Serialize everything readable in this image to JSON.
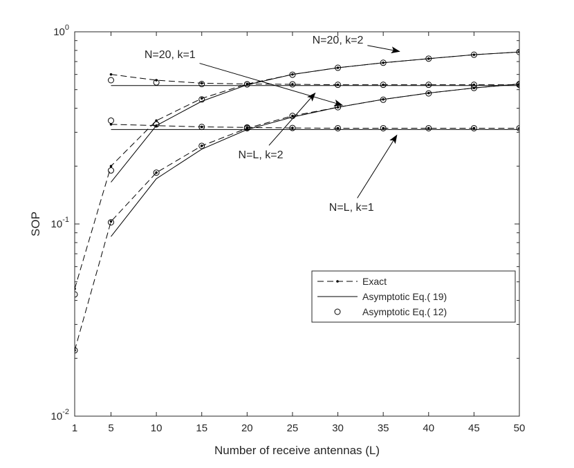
{
  "chart_data": {
    "type": "line",
    "xlabel": "Number of receive antennas (L)",
    "ylabel": "SOP",
    "xlim": [
      1,
      50
    ],
    "ylim": [
      0.01,
      1
    ],
    "yscale": "log",
    "grid": false,
    "legend_position": "lower-right",
    "x_ticks": [
      1,
      5,
      10,
      15,
      20,
      25,
      30,
      35,
      40,
      45,
      50
    ],
    "y_ticks": [
      {
        "value": 0.01,
        "base": "10",
        "exp": "-2"
      },
      {
        "value": 0.1,
        "base": "10",
        "exp": "-1"
      },
      {
        "value": 1,
        "base": "10",
        "exp": "0"
      }
    ],
    "legend": [
      {
        "label": "Exact",
        "style": "dashed-dot"
      },
      {
        "label": "Asymptotic Eq.( 19)",
        "style": "solid"
      },
      {
        "label": "Asymptotic Eq.( 12)",
        "style": "circle"
      }
    ],
    "annotations": [
      {
        "text": "N=20, k=2",
        "x": 30,
        "y": 0.87,
        "arrow_to": {
          "x": 36.8,
          "y": 0.79
        }
      },
      {
        "text": "N=20, k=1",
        "x": 11.5,
        "y": 0.73,
        "arrow_to": {
          "x": 30.5,
          "y": 0.415
        }
      },
      {
        "text": "N=L, k=2",
        "x": 21.5,
        "y": 0.22,
        "arrow_to": {
          "x": 27.5,
          "y": 0.48
        }
      },
      {
        "text": "N=L, k=1",
        "x": 31.5,
        "y": 0.117,
        "arrow_to": {
          "x": 36.5,
          "y": 0.29
        }
      }
    ],
    "groups": [
      {
        "id": "N=20, k=2",
        "exact": {
          "x": [
            1,
            5,
            10,
            15,
            20,
            25,
            30,
            35,
            40,
            45,
            50
          ],
          "y": [
            0.046,
            0.2,
            0.345,
            0.45,
            0.535,
            0.6,
            0.65,
            0.69,
            0.725,
            0.76,
            0.785
          ]
        },
        "asymptotic_19": {
          "x": [
            5,
            10,
            15,
            20,
            25,
            30,
            35,
            40,
            45,
            50
          ],
          "y": [
            0.165,
            0.325,
            0.435,
            0.53,
            0.6,
            0.65,
            0.69,
            0.725,
            0.76,
            0.785
          ]
        },
        "asymptotic_12": {
          "x": [
            1,
            5,
            10,
            15,
            20,
            25,
            30,
            35,
            40,
            45,
            50
          ],
          "y": [
            0.043,
            0.19,
            0.33,
            0.445,
            0.533,
            0.598,
            0.65,
            0.69,
            0.725,
            0.76,
            0.785
          ]
        }
      },
      {
        "id": "N=20, k=1",
        "exact": {
          "x": [
            1,
            5,
            10,
            15,
            20,
            25,
            30,
            35,
            40,
            45,
            50
          ],
          "y": [
            0.022,
            0.103,
            0.185,
            0.255,
            0.315,
            0.365,
            0.405,
            0.445,
            0.48,
            0.51,
            0.535
          ]
        },
        "asymptotic_19": {
          "x": [
            5,
            10,
            15,
            20,
            25,
            30,
            35,
            40,
            45,
            50
          ],
          "y": [
            0.086,
            0.172,
            0.245,
            0.31,
            0.36,
            0.405,
            0.445,
            0.48,
            0.51,
            0.535
          ]
        },
        "asymptotic_12": {
          "x": [
            1,
            5,
            10,
            15,
            20,
            25,
            30,
            35,
            40,
            45,
            50
          ],
          "y": [
            0.022,
            0.102,
            0.185,
            0.255,
            0.315,
            0.365,
            0.405,
            0.443,
            0.478,
            0.51,
            0.535
          ]
        }
      },
      {
        "id": "N=L, k=2",
        "exact": {
          "x": [
            5,
            10,
            15,
            20,
            25,
            30,
            35,
            40,
            45,
            50
          ],
          "y": [
            0.6,
            0.56,
            0.54,
            0.535,
            0.533,
            0.53,
            0.53,
            0.53,
            0.53,
            0.53
          ]
        },
        "asymptotic_19": {
          "x": [
            5,
            10,
            15,
            20,
            25,
            30,
            35,
            40,
            45,
            50
          ],
          "y": [
            0.525,
            0.525,
            0.525,
            0.525,
            0.525,
            0.525,
            0.525,
            0.525,
            0.525,
            0.525
          ]
        },
        "asymptotic_12": {
          "x": [
            5,
            10,
            15,
            20,
            25,
            30,
            35,
            40,
            45,
            50
          ],
          "y": [
            0.56,
            0.545,
            0.535,
            0.533,
            0.533,
            0.53,
            0.53,
            0.53,
            0.53,
            0.53
          ]
        }
      },
      {
        "id": "N=L, k=1",
        "exact": {
          "x": [
            5,
            10,
            15,
            20,
            25,
            30,
            35,
            40,
            45,
            50
          ],
          "y": [
            0.33,
            0.325,
            0.32,
            0.318,
            0.316,
            0.315,
            0.315,
            0.315,
            0.315,
            0.315
          ]
        },
        "asymptotic_19": {
          "x": [
            5,
            10,
            15,
            20,
            25,
            30,
            35,
            40,
            45,
            50
          ],
          "y": [
            0.31,
            0.31,
            0.31,
            0.31,
            0.31,
            0.31,
            0.31,
            0.31,
            0.31,
            0.31
          ]
        },
        "asymptotic_12": {
          "x": [
            5,
            10,
            15,
            20,
            25,
            30,
            35,
            40,
            45,
            50
          ],
          "y": [
            0.345,
            0.33,
            0.32,
            0.318,
            0.316,
            0.315,
            0.315,
            0.315,
            0.315,
            0.315
          ]
        }
      }
    ]
  },
  "colors": {
    "line": "#000000",
    "axis": "#262626",
    "background": "#ffffff"
  }
}
